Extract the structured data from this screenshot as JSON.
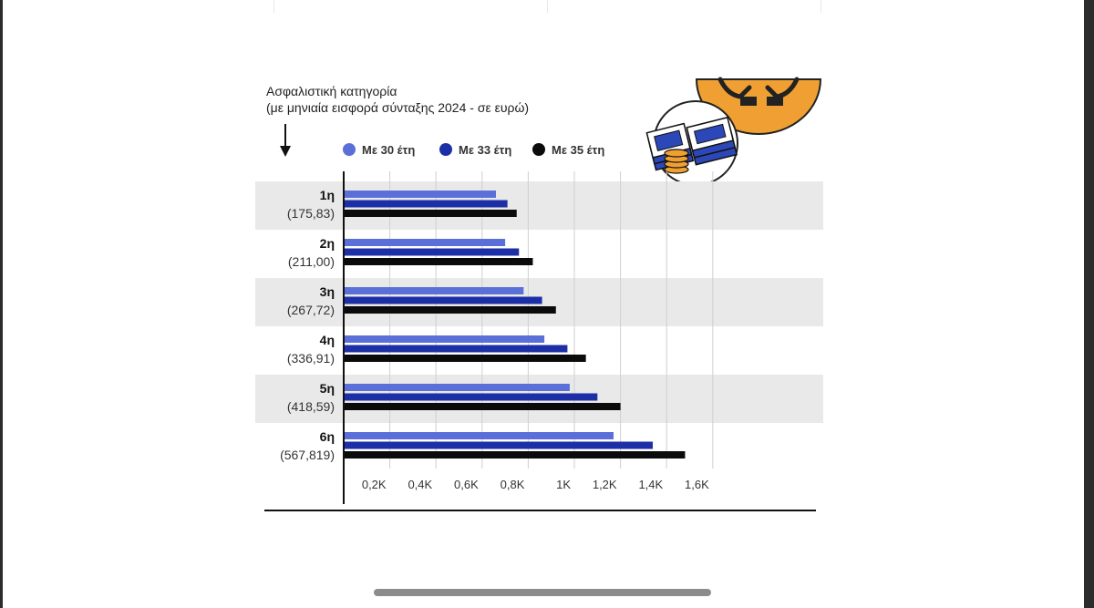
{
  "colors": {
    "series_30": "#5a70d8",
    "series_33": "#1d2fa6",
    "series_35": "#0b0b0b",
    "band": "#e9e9e9",
    "grid": "#cfcfcf",
    "coin": "#f0a033"
  },
  "icons": [
    "money-stack-icon",
    "hands-coin-icon",
    "down-arrow-icon"
  ],
  "chart_data": {
    "type": "bar",
    "orientation": "horizontal",
    "title": "Ασφαλιστική κατηγορία",
    "subtitle": "(με μηνιαία εισφορά σύνταξης 2024 - σε ευρώ)",
    "categories": [
      {
        "name": "1η",
        "contribution": "(175,83)"
      },
      {
        "name": "2η",
        "contribution": "(211,00)"
      },
      {
        "name": "3η",
        "contribution": "(267,72)"
      },
      {
        "name": "4η",
        "contribution": "(336,91)"
      },
      {
        "name": "5η",
        "contribution": "(418,59)"
      },
      {
        "name": "6η",
        "contribution": "(567,819)"
      }
    ],
    "series": [
      {
        "name": "Με 30 έτη",
        "values": [
          660,
          700,
          780,
          870,
          980,
          1170
        ]
      },
      {
        "name": "Με 33 έτη",
        "values": [
          710,
          760,
          860,
          970,
          1100,
          1340
        ]
      },
      {
        "name": "Με 35 έτη",
        "values": [
          750,
          820,
          920,
          1050,
          1200,
          1480
        ]
      }
    ],
    "xlim": [
      0,
      1600
    ],
    "xticks": [
      "0,2K",
      "0,4K",
      "0,6K",
      "0,8K",
      "1K",
      "1,2K",
      "1,4K",
      "1,6K"
    ],
    "grid": true,
    "legend_position": "top"
  }
}
